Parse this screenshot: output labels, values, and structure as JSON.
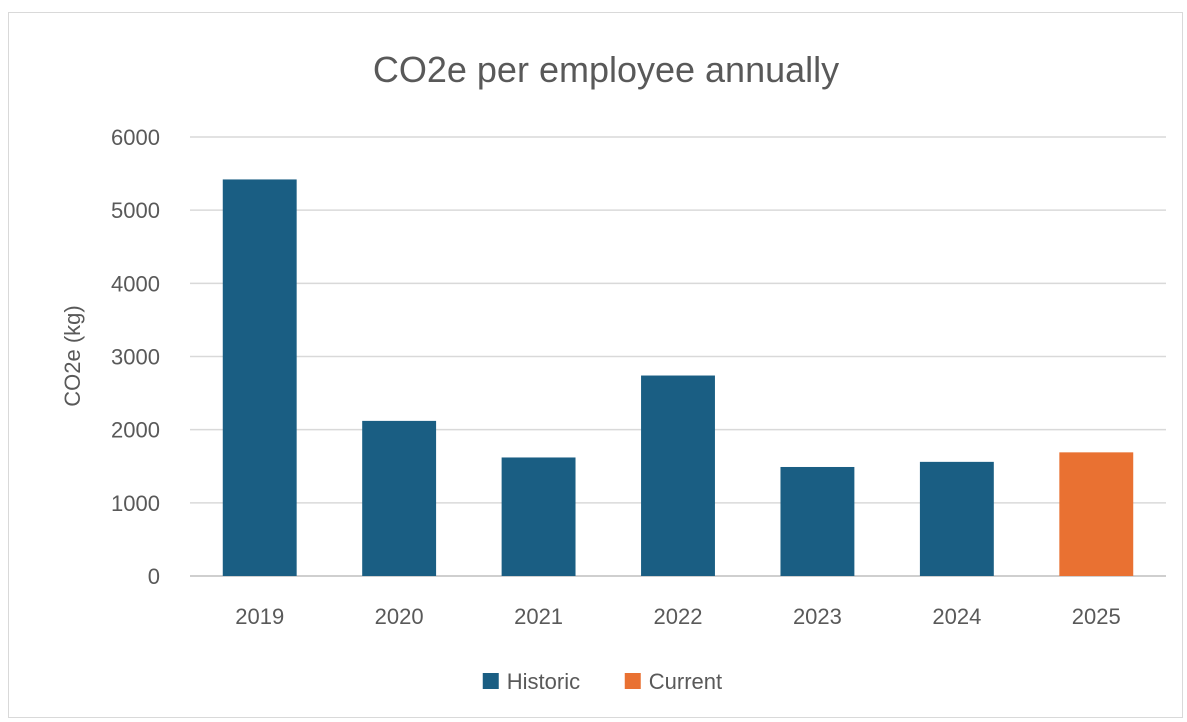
{
  "chart_data": {
    "type": "bar",
    "title": "CO2e per employee annually",
    "xlabel": "",
    "ylabel": "CO2e (kg)",
    "ylim": [
      0,
      6000
    ],
    "yticks": [
      0,
      1000,
      2000,
      3000,
      4000,
      5000,
      6000
    ],
    "grid": true,
    "legend_position": "bottom",
    "categories": [
      "2019",
      "2020",
      "2021",
      "2022",
      "2023",
      "2024",
      "2025"
    ],
    "series": [
      {
        "name": "Historic",
        "color": "#1a5e83",
        "values": [
          5420,
          2120,
          1620,
          2740,
          1490,
          1560,
          null
        ]
      },
      {
        "name": "Current",
        "color": "#e97132",
        "values": [
          null,
          null,
          null,
          null,
          null,
          null,
          1690
        ]
      }
    ]
  }
}
